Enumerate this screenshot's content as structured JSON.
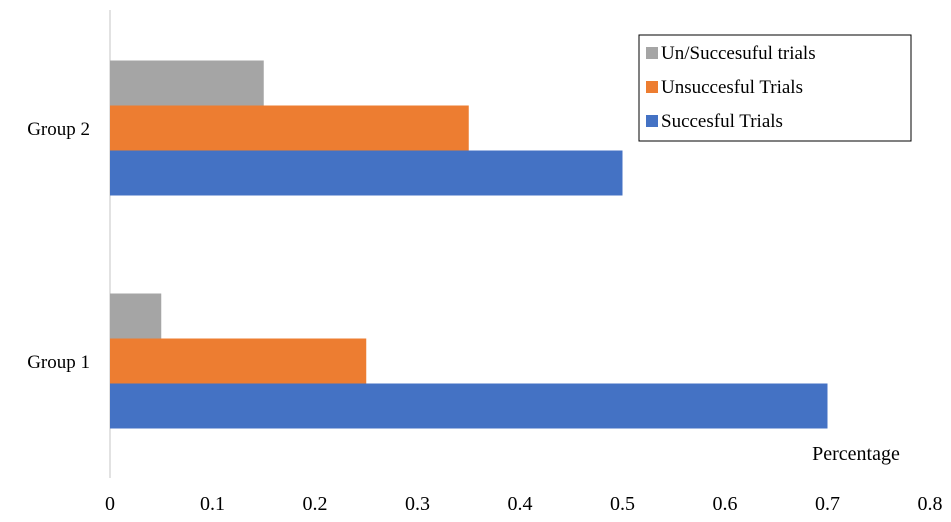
{
  "chart_data": {
    "type": "bar",
    "orientation": "horizontal",
    "title": "",
    "xlabel": "Percentage",
    "ylabel": "",
    "categories": [
      "Group 1",
      "Group 2"
    ],
    "series": [
      {
        "name": "Succesful Trials",
        "color": "#4472C4",
        "values": [
          0.7,
          0.5
        ]
      },
      {
        "name": "Unsuccesful Trials",
        "color": "#ED7D31",
        "values": [
          0.25,
          0.35
        ]
      },
      {
        "name": "Un/Succesuful trials",
        "color": "#A5A5A5",
        "values": [
          0.05,
          0.15
        ]
      }
    ],
    "xlim": [
      0,
      0.8
    ],
    "xticks": [
      "0",
      "0.1",
      "0.2",
      "0.3",
      "0.4",
      "0.5",
      "0.6",
      "0.7",
      "0.8"
    ],
    "grid": false,
    "legend_position": "top-right",
    "legend_order": [
      "Un/Succesuful trials",
      "Unsuccesful Trials",
      "Succesful Trials"
    ]
  }
}
